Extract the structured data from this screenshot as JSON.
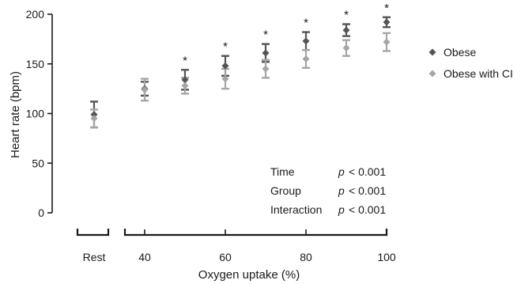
{
  "chart_data": {
    "type": "scatter",
    "xlabel": "Oxygen uptake (%)",
    "ylabel": "Heart rate (bpm)",
    "ylim": [
      0,
      200
    ],
    "y_ticks": [
      "0",
      "50",
      "100",
      "150",
      "200"
    ],
    "x_ticks": [
      "Rest",
      "40",
      "60",
      "80",
      "100"
    ],
    "x_tick_values": [
      "rest",
      40,
      60,
      80,
      100
    ],
    "xlim": [
      30,
      100
    ],
    "legend_position": "right",
    "series": [
      {
        "name": "Obese",
        "color": "#555555",
        "marker": "diamond",
        "points": [
          {
            "x": "rest",
            "y": 99,
            "err": 13
          },
          {
            "x": 40,
            "y": 125,
            "err": 7
          },
          {
            "x": 50,
            "y": 134,
            "err": 10
          },
          {
            "x": 60,
            "y": 148,
            "err": 10
          },
          {
            "x": 70,
            "y": 161,
            "err": 9
          },
          {
            "x": 80,
            "y": 173,
            "err": 9
          },
          {
            "x": 90,
            "y": 184,
            "err": 6
          },
          {
            "x": 100,
            "y": 192,
            "err": 5
          }
        ]
      },
      {
        "name": "Obese with CI",
        "color": "#a6a6a6",
        "marker": "diamond",
        "points": [
          {
            "x": "rest",
            "y": 95,
            "err": 9
          },
          {
            "x": 40,
            "y": 124,
            "err": 11
          },
          {
            "x": 50,
            "y": 128,
            "err": 8
          },
          {
            "x": 60,
            "y": 135,
            "err": 10
          },
          {
            "x": 70,
            "y": 145,
            "err": 9
          },
          {
            "x": 80,
            "y": 155,
            "err": 9
          },
          {
            "x": 90,
            "y": 166,
            "err": 8
          },
          {
            "x": 100,
            "y": 172,
            "err": 9
          }
        ]
      }
    ],
    "significance": {
      "symbol": "*",
      "x": [
        50,
        60,
        70,
        80,
        90,
        100
      ]
    },
    "stats": [
      {
        "label": "Time",
        "p": "p",
        "value": "< 0.001"
      },
      {
        "label": "Group",
        "p": "p",
        "value": "< 0.001"
      },
      {
        "label": "Interaction",
        "p": "p",
        "value": "< 0.001"
      }
    ]
  }
}
